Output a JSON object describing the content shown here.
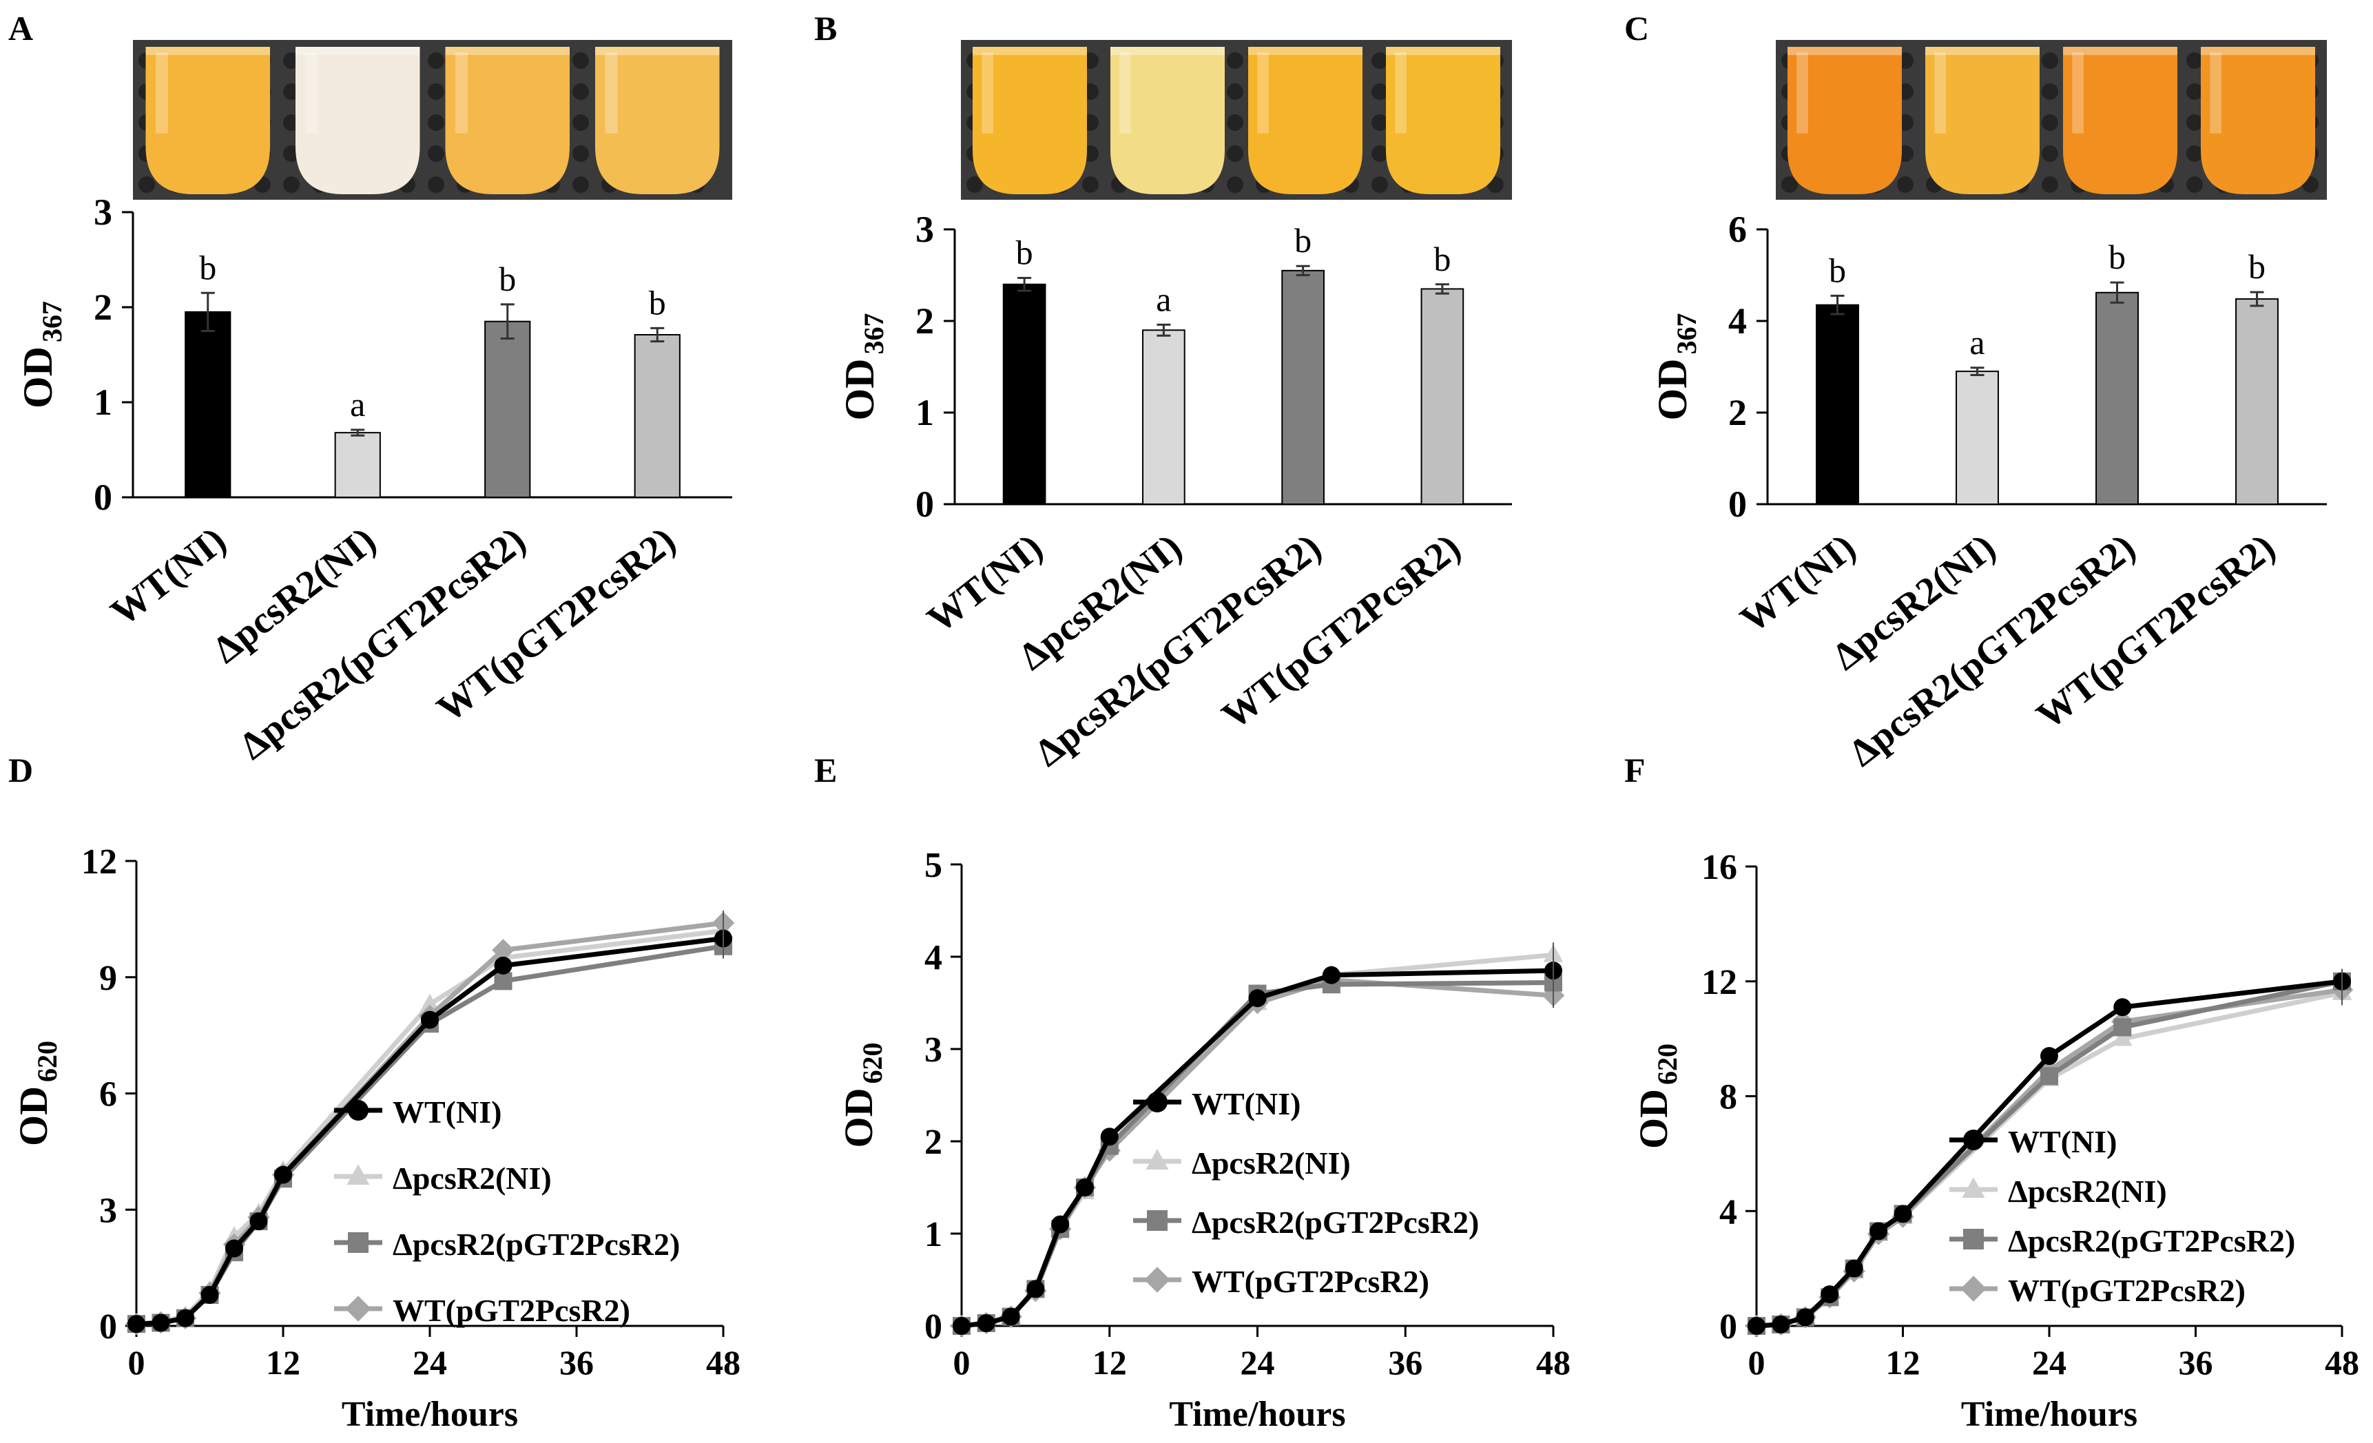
{
  "colors": {
    "black": "#000000",
    "wt_ni": "#000000",
    "dpcsr2_ni": "#d9d9d9",
    "dpcsr2_comp": "#7f7f7f",
    "wt_pgt": "#bfbfbf",
    "line_dpcsr2_ni": "#cfcfcf",
    "line_dpcsr2_comp": "#7f7f7f",
    "line_wt_pgt": "#a6a6a6",
    "tube_fill_yellow": "#f2b431",
    "tube_fill_white": "#f4ecdd",
    "tube_fill_orange": "#f08a1c",
    "rack": "#3a3a3a"
  },
  "panel_labels": [
    "A",
    "B",
    "C",
    "D",
    "E",
    "F"
  ],
  "photos": [
    {
      "panel": "A",
      "tubes": [
        "#f5b53a",
        "#f3ebdd",
        "#f5b84a",
        "#f4bd52"
      ]
    },
    {
      "panel": "B",
      "tubes": [
        "#f6b62c",
        "#f3dc86",
        "#f5b42a",
        "#f5b92d"
      ]
    },
    {
      "panel": "C",
      "tubes": [
        "#f08b1c",
        "#f3b437",
        "#f1901e",
        "#f19520"
      ]
    }
  ],
  "chart_data": [
    {
      "panel": "A",
      "type": "bar",
      "ylabel": "OD",
      "ylabel_sub": "367",
      "ylim": [
        0,
        3
      ],
      "yticks": [
        "0",
        "1",
        "2",
        "3"
      ],
      "categories": [
        "WT(NI)",
        "ΔpcsR2(NI)",
        "ΔpcsR2(pGT2PcsR2)",
        "WT(pGT2PcsR2)"
      ],
      "values": [
        1.95,
        0.68,
        1.85,
        1.71
      ],
      "errors": [
        0.2,
        0.03,
        0.18,
        0.07
      ],
      "letters": [
        "b",
        "a",
        "b",
        "b"
      ]
    },
    {
      "panel": "B",
      "type": "bar",
      "ylabel": "OD",
      "ylabel_sub": "367",
      "ylim": [
        0,
        3
      ],
      "yticks": [
        "0",
        "1",
        "2",
        "3"
      ],
      "categories": [
        "WT(NI)",
        "ΔpcsR2(NI)",
        "ΔpcsR2(pGT2PcsR2)",
        "WT(pGT2PcsR2)"
      ],
      "values": [
        2.4,
        1.9,
        2.55,
        2.35
      ],
      "errors": [
        0.07,
        0.06,
        0.05,
        0.05
      ],
      "letters": [
        "b",
        "a",
        "b",
        "b"
      ]
    },
    {
      "panel": "C",
      "type": "bar",
      "ylabel": "OD",
      "ylabel_sub": "367",
      "ylim": [
        0,
        6
      ],
      "yticks": [
        "0",
        "2",
        "4",
        "6"
      ],
      "categories": [
        "WT(NI)",
        "ΔpcsR2(NI)",
        "ΔpcsR2(pGT2PcsR2)",
        "WT(pGT2PcsR2)"
      ],
      "values": [
        4.35,
        2.9,
        4.62,
        4.48
      ],
      "errors": [
        0.2,
        0.08,
        0.22,
        0.15
      ],
      "letters": [
        "b",
        "a",
        "b",
        "b"
      ]
    },
    {
      "panel": "D",
      "type": "line",
      "xlabel": "Time/hours",
      "ylabel": "OD",
      "ylabel_sub": "620",
      "xlim": [
        0,
        48
      ],
      "xticks": [
        "0",
        "12",
        "24",
        "36",
        "48"
      ],
      "ylim": [
        0,
        12
      ],
      "yticks": [
        "0",
        "3",
        "6",
        "9",
        "12"
      ],
      "x": [
        0,
        2,
        4,
        6,
        8,
        10,
        12,
        24,
        30,
        48
      ],
      "legend": [
        "WT(NI)",
        "ΔpcsR2(NI)",
        "ΔpcsR2(pGT2PcsR2)",
        "WT(pGT2PcsR2)"
      ],
      "series": [
        {
          "name": "WT(NI)",
          "marker": "circle",
          "values": [
            0.05,
            0.08,
            0.2,
            0.8,
            2.0,
            2.7,
            3.9,
            7.9,
            9.3,
            10.0
          ]
        },
        {
          "name": "ΔpcsR2(NI)",
          "marker": "triangle",
          "values": [
            0.05,
            0.1,
            0.25,
            0.9,
            2.3,
            2.9,
            4.0,
            8.3,
            9.5,
            10.2
          ]
        },
        {
          "name": "ΔpcsR2(pGT2PcsR2)",
          "marker": "square",
          "values": [
            0.05,
            0.08,
            0.2,
            0.8,
            1.9,
            2.7,
            3.8,
            7.8,
            8.9,
            9.8
          ]
        },
        {
          "name": "WT(pGT2PcsR2)",
          "marker": "diamond",
          "values": [
            0.05,
            0.09,
            0.2,
            0.85,
            2.1,
            2.8,
            3.9,
            8.0,
            9.7,
            10.4
          ]
        }
      ]
    },
    {
      "panel": "E",
      "type": "line",
      "xlabel": "Time/hours",
      "ylabel": "OD",
      "ylabel_sub": "620",
      "xlim": [
        0,
        48
      ],
      "xticks": [
        "0",
        "12",
        "24",
        "36",
        "48"
      ],
      "ylim": [
        0,
        5
      ],
      "yticks": [
        "0",
        "1",
        "2",
        "3",
        "4",
        "5"
      ],
      "x": [
        0,
        2,
        4,
        6,
        8,
        10,
        12,
        24,
        30,
        48
      ],
      "legend": [
        "WT(NI)",
        "ΔpcsR2(NI)",
        "ΔpcsR2(pGT2PcsR2)",
        "WT(pGT2PcsR2)"
      ],
      "series": [
        {
          "name": "WT(NI)",
          "marker": "circle",
          "values": [
            0.0,
            0.03,
            0.1,
            0.4,
            1.1,
            1.5,
            2.05,
            3.55,
            3.8,
            3.85
          ]
        },
        {
          "name": "ΔpcsR2(NI)",
          "marker": "triangle",
          "values": [
            0.0,
            0.03,
            0.1,
            0.4,
            1.05,
            1.45,
            1.95,
            3.5,
            3.8,
            4.02
          ]
        },
        {
          "name": "ΔpcsR2(pGT2PcsR2)",
          "marker": "square",
          "values": [
            0.0,
            0.03,
            0.1,
            0.4,
            1.05,
            1.5,
            1.95,
            3.6,
            3.7,
            3.72
          ]
        },
        {
          "name": "WT(pGT2PcsR2)",
          "marker": "diamond",
          "values": [
            0.0,
            0.03,
            0.1,
            0.38,
            1.05,
            1.5,
            1.9,
            3.5,
            3.75,
            3.58
          ]
        }
      ]
    },
    {
      "panel": "F",
      "type": "line",
      "xlabel": "Time/hours",
      "ylabel": "OD",
      "ylabel_sub": "620",
      "xlim": [
        0,
        48
      ],
      "xticks": [
        "0",
        "12",
        "24",
        "36",
        "48"
      ],
      "ylim": [
        0,
        16
      ],
      "yticks": [
        "0",
        "4",
        "8",
        "12",
        "16"
      ],
      "x": [
        0,
        2,
        4,
        6,
        8,
        10,
        12,
        24,
        30,
        48
      ],
      "legend": [
        "WT(NI)",
        "ΔpcsR2(NI)",
        "ΔpcsR2(pGT2PcsR2)",
        "WT(pGT2PcsR2)"
      ],
      "series": [
        {
          "name": "WT(NI)",
          "marker": "circle",
          "values": [
            0.0,
            0.05,
            0.3,
            1.1,
            2.0,
            3.3,
            3.9,
            9.4,
            11.1,
            12.0
          ]
        },
        {
          "name": "ΔpcsR2(NI)",
          "marker": "triangle",
          "values": [
            0.0,
            0.05,
            0.3,
            1.0,
            1.9,
            3.2,
            3.8,
            8.6,
            10.0,
            11.6
          ]
        },
        {
          "name": "ΔpcsR2(pGT2PcsR2)",
          "marker": "square",
          "values": [
            0.0,
            0.05,
            0.3,
            1.0,
            2.0,
            3.3,
            3.9,
            8.7,
            10.4,
            12.0
          ]
        },
        {
          "name": "WT(pGT2PcsR2)",
          "marker": "diamond",
          "values": [
            0.0,
            0.05,
            0.3,
            1.0,
            1.9,
            3.2,
            3.8,
            8.9,
            10.6,
            11.7
          ]
        }
      ]
    }
  ]
}
